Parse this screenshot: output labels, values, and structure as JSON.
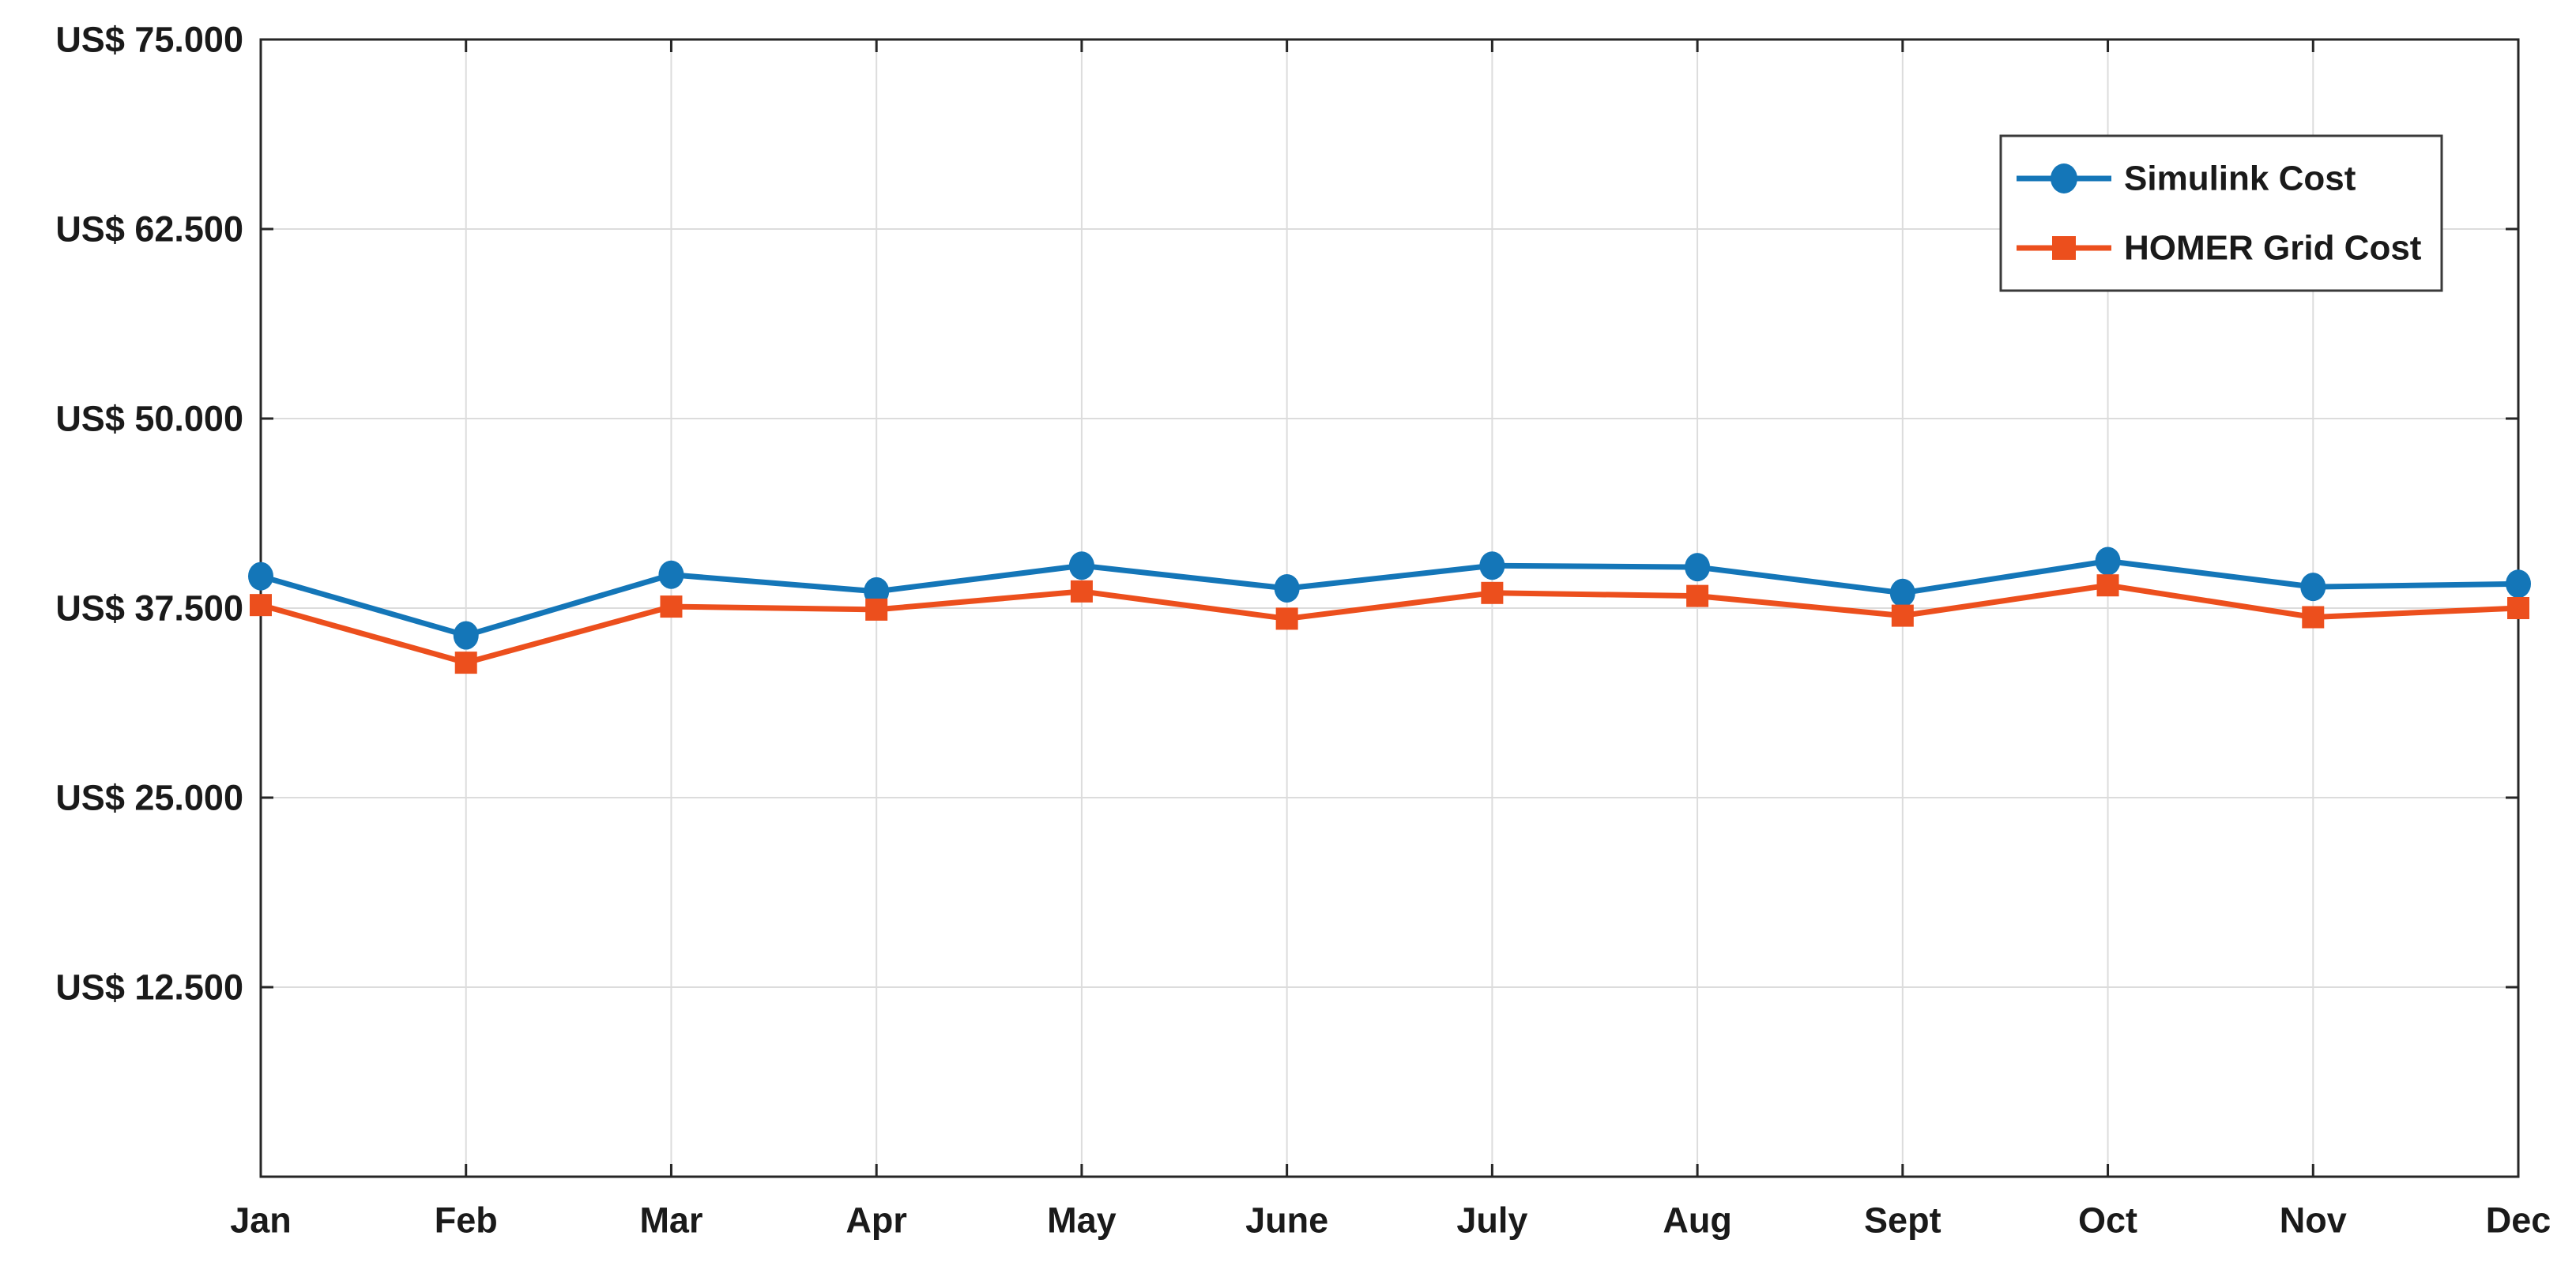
{
  "chart_data": {
    "type": "line",
    "title": "",
    "xlabel": "",
    "ylabel": "",
    "categories": [
      "Jan",
      "Feb",
      "Mar",
      "Apr",
      "May",
      "June",
      "July",
      "Aug",
      "Sept",
      "Oct",
      "Nov",
      "Dec"
    ],
    "series": [
      {
        "name": "Simulink Cost",
        "color": "#1476b8",
        "marker": "circle",
        "values": [
          39600,
          35700,
          39700,
          38600,
          40300,
          38800,
          40300,
          40200,
          38500,
          40600,
          38900,
          39100
        ]
      },
      {
        "name": "HOMER Grid Cost",
        "color": "#ec4f1d",
        "marker": "square",
        "values": [
          37700,
          33900,
          37600,
          37400,
          38600,
          36800,
          38500,
          38300,
          37000,
          39000,
          36900,
          37500
        ]
      }
    ],
    "y_ticks": [
      {
        "value": 12500,
        "label": "US$ 12.500"
      },
      {
        "value": 25000,
        "label": "US$ 25.000"
      },
      {
        "value": 37500,
        "label": "US$ 37.500"
      },
      {
        "value": 50000,
        "label": "US$ 50.000"
      },
      {
        "value": 62500,
        "label": "US$ 62.500"
      },
      {
        "value": 75000,
        "label": "US$ 75.000"
      }
    ],
    "ylim": [
      0,
      75000
    ],
    "currency_prefix": "US$",
    "grid": true,
    "legend_position": "top-right",
    "style": {
      "axis_color": "#262626",
      "grid_color": "#dcdcdc",
      "text_color": "#1a1a1a",
      "background": "#ffffff",
      "legend_border": "#3a3a3a"
    }
  }
}
